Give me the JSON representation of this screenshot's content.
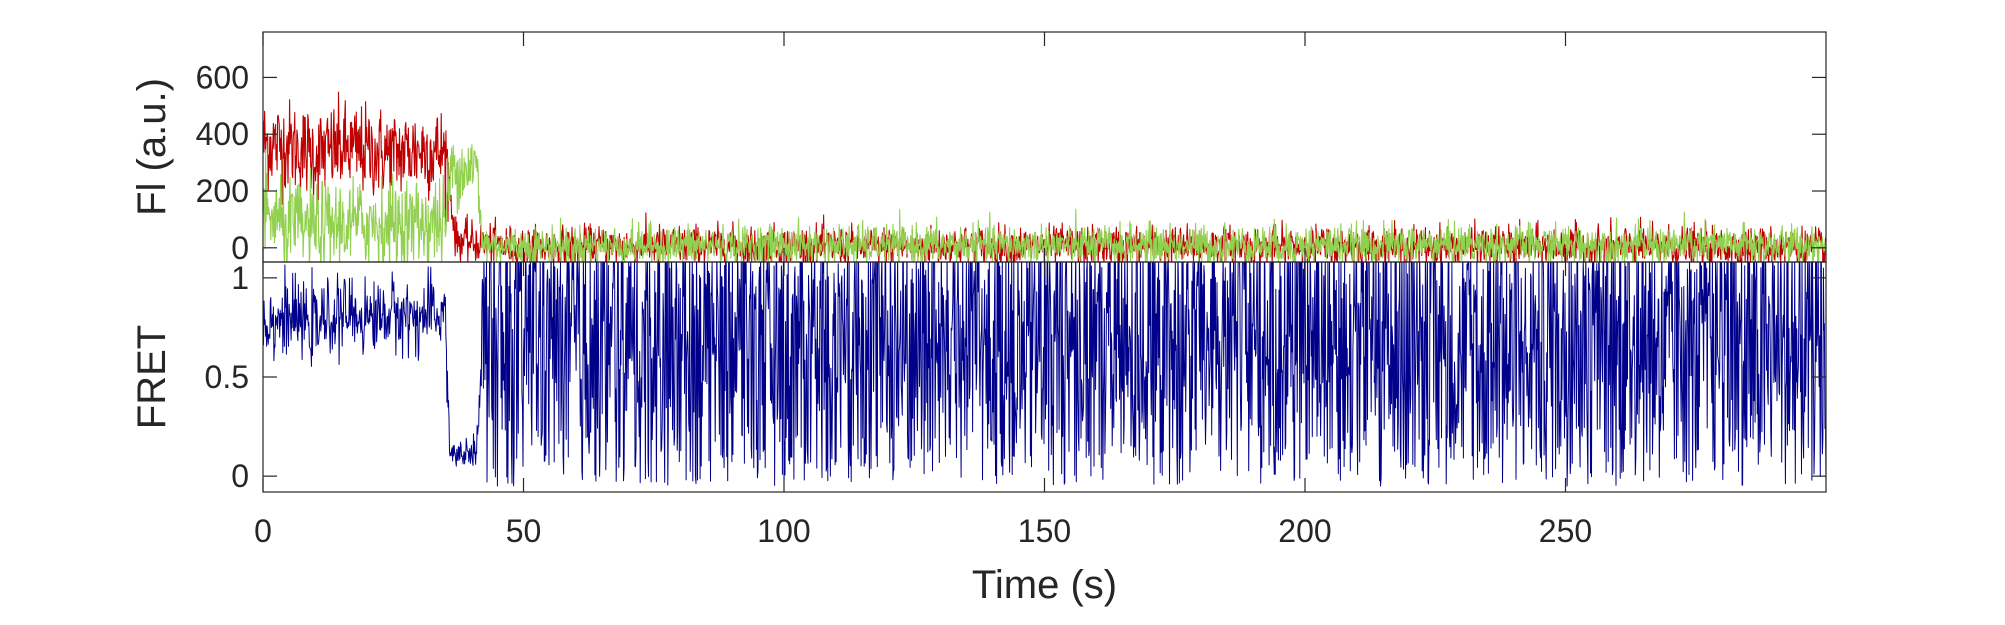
{
  "chart_data": [
    {
      "type": "line",
      "ylabel": "Fl (a.u.)",
      "xlabel": "",
      "xlim": [
        0,
        300
      ],
      "ylim": [
        -50,
        760
      ],
      "x_ticks": [
        0,
        50,
        100,
        150,
        200,
        250
      ],
      "y_ticks": [
        0,
        200,
        400,
        600
      ],
      "grid": false,
      "series": [
        {
          "color": "#c00000",
          "x": [
            0,
            5,
            10,
            15,
            20,
            25,
            30,
            35,
            37,
            40,
            45,
            50,
            60,
            80,
            100,
            150,
            200,
            250,
            300
          ],
          "values": [
            370,
            360,
            330,
            350,
            340,
            330,
            345,
            335,
            30,
            20,
            10,
            0,
            5,
            10,
            5,
            5,
            5,
            5,
            0
          ]
        },
        {
          "color": "#92d050",
          "x": [
            0,
            5,
            10,
            15,
            20,
            25,
            30,
            35,
            36,
            38,
            41,
            42,
            45,
            50,
            100,
            150,
            200,
            250,
            300
          ],
          "values": [
            120,
            80,
            70,
            80,
            90,
            80,
            90,
            85,
            270,
            280,
            290,
            20,
            10,
            5,
            10,
            10,
            10,
            10,
            10
          ]
        }
      ]
    },
    {
      "type": "line",
      "ylabel": "FRET",
      "xlabel": "Time (s)",
      "xlim": [
        0,
        300
      ],
      "ylim": [
        -0.08,
        1.08
      ],
      "x_ticks": [
        0,
        50,
        100,
        150,
        200,
        250
      ],
      "y_ticks": [
        0,
        0.5,
        1
      ],
      "y_tick_labels": [
        "0",
        "0.5",
        "1"
      ],
      "grid": false,
      "series": [
        {
          "color": "#00008b",
          "x": [
            0,
            5,
            10,
            15,
            20,
            25,
            30,
            35,
            36,
            38,
            41,
            42,
            50,
            100,
            150,
            200,
            250,
            300
          ],
          "values": [
            0.78,
            0.8,
            0.76,
            0.82,
            0.8,
            0.82,
            0.8,
            0.82,
            0.05,
            0.05,
            0.05,
            0.5,
            0.5,
            0.5,
            0.5,
            0.5,
            0.5,
            0.5
          ]
        }
      ]
    }
  ]
}
